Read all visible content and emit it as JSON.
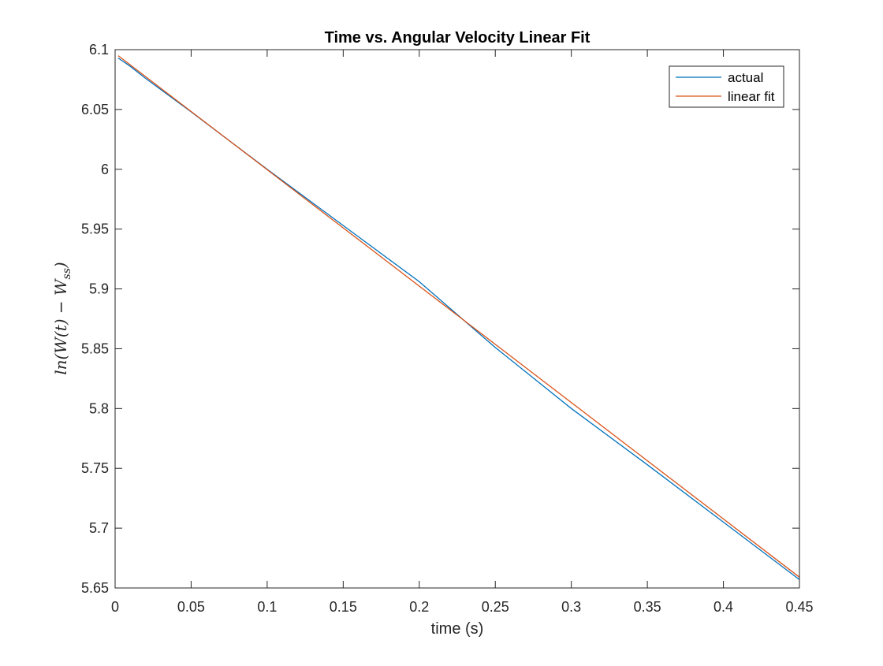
{
  "chart_data": {
    "type": "line",
    "title": "Time vs. Angular Velocity Linear Fit",
    "xlabel": "time (s)",
    "ylabel": "ln(W(t) − W",
    "ylabel_subscript": "ss",
    "ylabel_close": ")",
    "xlim": [
      0,
      0.45
    ],
    "ylim": [
      5.65,
      6.1
    ],
    "xticks": [
      0,
      0.05,
      0.1,
      0.15,
      0.2,
      0.25,
      0.3,
      0.35,
      0.4,
      0.45
    ],
    "xtick_labels": [
      "0",
      "0.05",
      "0.1",
      "0.15",
      "0.2",
      "0.25",
      "0.3",
      "0.35",
      "0.4",
      "0.45"
    ],
    "yticks": [
      5.65,
      5.7,
      5.75,
      5.8,
      5.85,
      5.9,
      5.95,
      6.0,
      6.05,
      6.1
    ],
    "ytick_labels": [
      "5.65",
      "5.7",
      "5.75",
      "5.8",
      "5.85",
      "5.9",
      "5.95",
      "6",
      "6.05",
      "6.1"
    ],
    "grid": false,
    "legend_position": "top-right",
    "series": [
      {
        "name": "actual",
        "color": "#0072BD",
        "x": [
          0.002,
          0.01,
          0.02,
          0.05,
          0.1,
          0.15,
          0.2,
          0.25,
          0.3,
          0.35,
          0.4,
          0.45
        ],
        "y": [
          6.093,
          6.086,
          6.076,
          6.048,
          6.0,
          5.953,
          5.906,
          5.851,
          5.8,
          5.753,
          5.705,
          5.657
        ]
      },
      {
        "name": "linear fit",
        "color": "#D95319",
        "x": [
          0.002,
          0.45
        ],
        "y": [
          6.095,
          5.659
        ]
      }
    ]
  }
}
